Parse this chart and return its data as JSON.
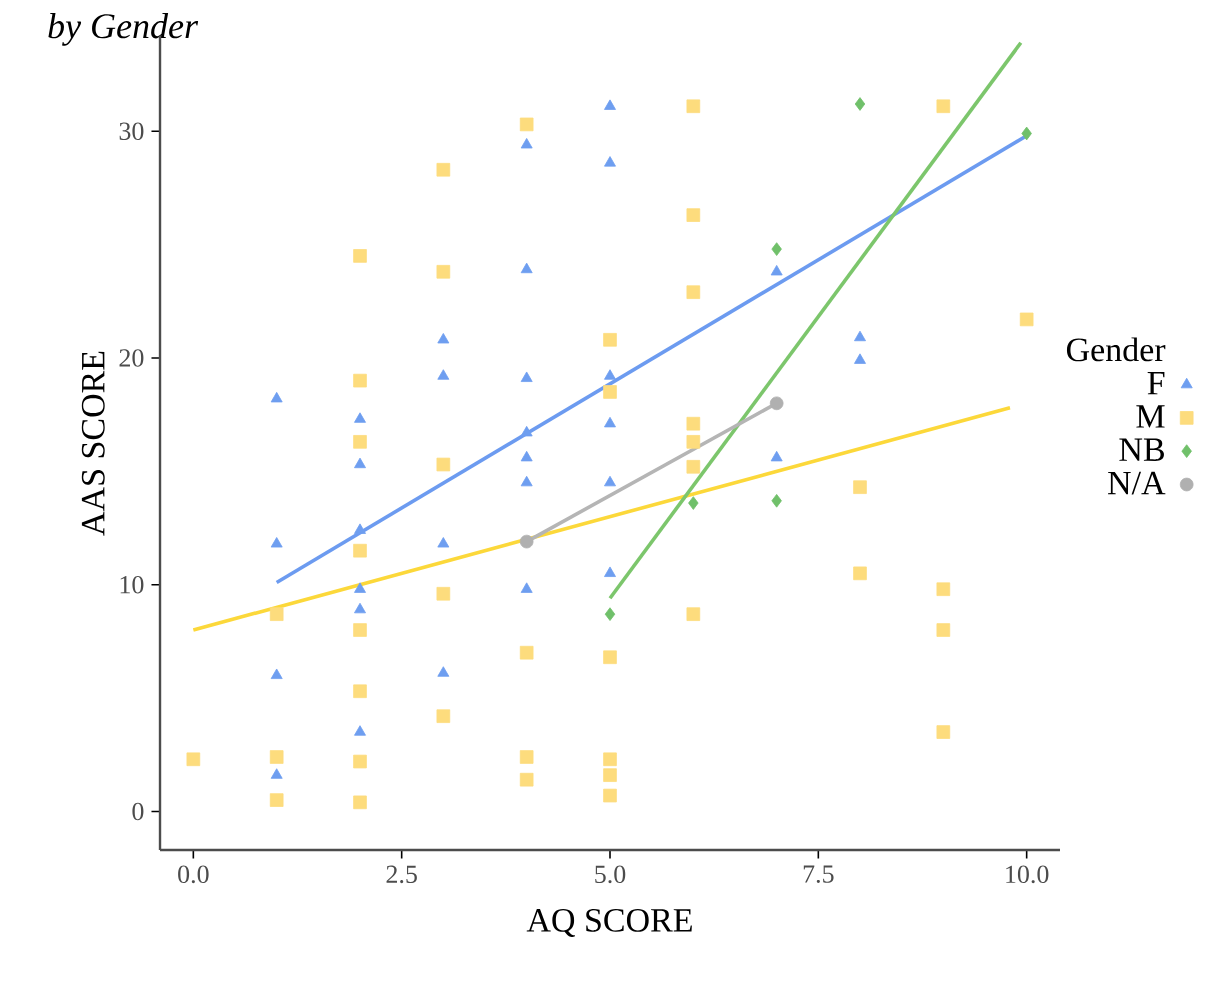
{
  "chart_data": {
    "type": "scatter",
    "title": "by Gender",
    "xlabel": "AQ SCORE",
    "ylabel": "AAS SCORE",
    "legend_title": "Gender",
    "legend": "right",
    "grid": false,
    "xlim": [
      -0.4,
      10.4
    ],
    "ylim": [
      -1.7,
      34.2
    ],
    "xticks": [
      {
        "value": 0,
        "label": "0.0"
      },
      {
        "value": 2.5,
        "label": "2.5"
      },
      {
        "value": 5,
        "label": "5.0"
      },
      {
        "value": 7.5,
        "label": "7.5"
      },
      {
        "value": 10,
        "label": "10.0"
      }
    ],
    "yticks": [
      0,
      10,
      20,
      30
    ],
    "series": [
      {
        "name": "F",
        "color": "#6e9ef0",
        "marker": "triangle",
        "x": [
          1,
          1,
          1,
          1,
          2,
          2,
          2,
          2,
          2,
          2,
          3,
          3,
          3,
          3,
          4,
          4,
          4,
          4,
          4,
          4,
          4,
          5,
          5,
          5,
          5,
          5,
          5,
          7,
          7,
          8,
          8
        ],
        "values": [
          18.2,
          11.8,
          6.0,
          1.6,
          17.3,
          15.3,
          12.4,
          9.8,
          8.9,
          3.5,
          20.8,
          19.2,
          11.8,
          6.1,
          29.4,
          23.9,
          19.1,
          16.7,
          15.6,
          14.5,
          9.8,
          31.1,
          28.6,
          19.2,
          17.1,
          14.5,
          10.5,
          23.8,
          15.6,
          20.9,
          19.9
        ]
      },
      {
        "name": "M",
        "color": "#fddc7d",
        "marker": "square",
        "x": [
          0,
          1,
          1,
          1,
          2,
          2,
          2,
          2,
          2,
          2,
          2,
          2,
          3,
          3,
          3,
          3,
          3,
          4,
          4,
          4,
          4,
          5,
          5,
          5,
          5,
          5,
          5,
          6,
          6,
          6,
          6,
          6,
          6,
          6,
          8,
          8,
          9,
          9,
          9,
          9,
          10
        ],
        "values": [
          2.3,
          2.4,
          0.5,
          8.7,
          24.5,
          19.0,
          16.3,
          11.5,
          8.0,
          5.3,
          2.2,
          0.4,
          28.3,
          23.8,
          15.3,
          9.6,
          4.2,
          30.3,
          7.0,
          2.4,
          1.4,
          20.8,
          18.5,
          6.8,
          2.3,
          1.6,
          0.7,
          31.1,
          26.3,
          22.9,
          17.1,
          16.3,
          15.2,
          8.7,
          14.3,
          10.5,
          31.1,
          9.8,
          8.0,
          3.5,
          21.7
        ]
      },
      {
        "name": "NB",
        "color": "#70c06a",
        "marker": "diamond",
        "x": [
          5,
          6,
          7,
          7,
          8,
          10
        ],
        "values": [
          8.7,
          13.6,
          24.8,
          13.7,
          31.2,
          29.9
        ]
      },
      {
        "name": "N/A",
        "color": "#b0b0b0",
        "marker": "circle",
        "x": [
          4,
          7
        ],
        "values": [
          11.9,
          18.0
        ]
      },
      {
        "type": "line",
        "color": "#6c9bf0",
        "x": [
          1,
          10
        ],
        "values": [
          10.1,
          29.8
        ]
      },
      {
        "type": "line",
        "color": "#fcd83a",
        "x": [
          0,
          9.8
        ],
        "values": [
          8.0,
          17.8
        ]
      },
      {
        "type": "line",
        "color": "#7cc66c",
        "x": [
          5,
          9.93
        ],
        "values": [
          9.4,
          33.9
        ]
      },
      {
        "type": "line",
        "color": "#b5b5b5",
        "x": [
          4,
          7
        ],
        "values": [
          11.9,
          18.0
        ]
      }
    ]
  }
}
